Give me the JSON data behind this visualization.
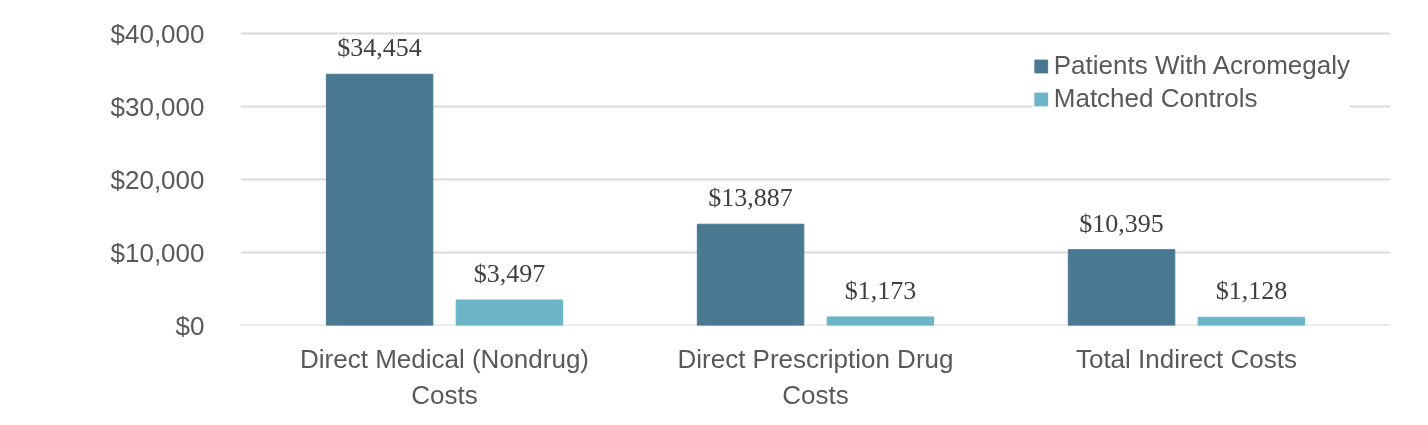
{
  "chart_data": {
    "type": "bar",
    "categories": [
      "Direct Medical (Nondrug) Costs",
      "Direct Prescription Drug Costs",
      "Total Indirect Costs"
    ],
    "series": [
      {
        "name": "Patients With Acromegaly",
        "color": "#4a7891",
        "values": [
          34454,
          13887,
          10395
        ],
        "value_labels": [
          "$34,454",
          "$13,887",
          "$10,395"
        ]
      },
      {
        "name": "Matched Controls",
        "color": "#6cb4c8",
        "values": [
          3497,
          1173,
          1128
        ],
        "value_labels": [
          "$3,497",
          "$1,173",
          "$1,128"
        ]
      }
    ],
    "ylim": [
      0,
      40000
    ],
    "yticks": [
      {
        "value": 0,
        "label": "$0"
      },
      {
        "value": 10000,
        "label": "$10,000"
      },
      {
        "value": 20000,
        "label": "$20,000"
      },
      {
        "value": 30000,
        "label": "$30,000"
      },
      {
        "value": 40000,
        "label": "$40,000"
      }
    ],
    "grid": "y",
    "legend": "top right"
  }
}
